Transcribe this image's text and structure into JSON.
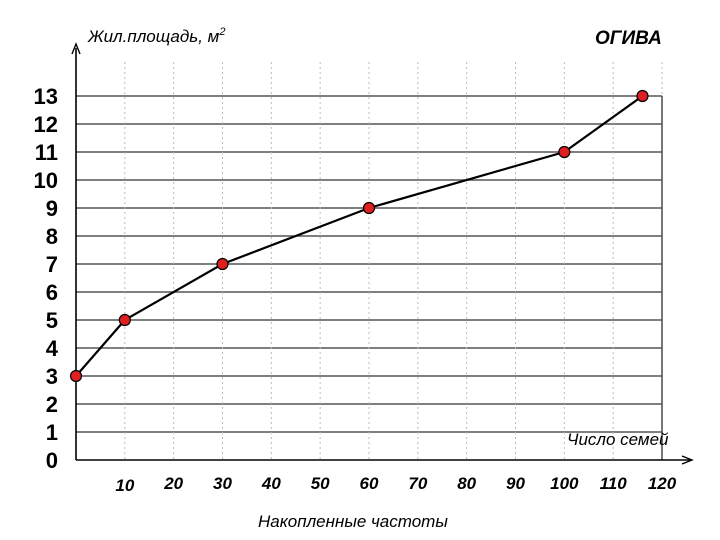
{
  "chart_data": {
    "type": "line",
    "title": "ОГИВА",
    "ylabel_text": "Жил.площадь, м",
    "ylabel_sup": "2",
    "xlabel": "Накопленные частоты",
    "x_axis_end_label": "Число семей",
    "x_tick_labels": [
      "10",
      "20",
      "30",
      "40",
      "50",
      "60",
      "70",
      "80",
      "90",
      "100",
      "110",
      "120"
    ],
    "y_tick_labels": [
      "0",
      "1",
      "2",
      "3",
      "4",
      "5",
      "6",
      "7",
      "8",
      "9",
      "10",
      "11",
      "12",
      "13"
    ],
    "xlim": [
      0,
      120
    ],
    "ylim": [
      0,
      13
    ],
    "x": [
      0,
      10,
      30,
      60,
      100,
      116
    ],
    "y": [
      3,
      5,
      7,
      9,
      11,
      13
    ],
    "line_color": "#000000",
    "marker_color": "#e02020"
  }
}
